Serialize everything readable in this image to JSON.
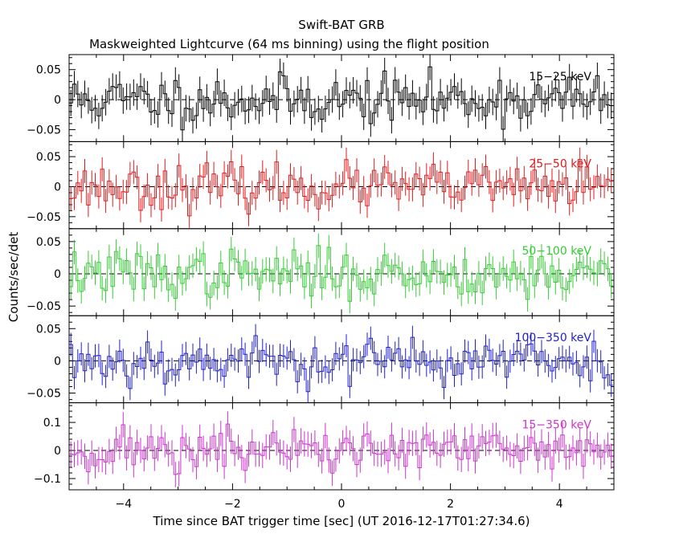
{
  "chart_data": {
    "type": "line",
    "title": "Swift-BAT GRB",
    "subtitle": "Maskweighted Lightcurve (64 ms binning) using the flight position",
    "xlabel": "Time since BAT trigger time [sec] (UT 2016-12-17T01:27:34.6)",
    "ylabel": "Counts/sec/det",
    "xlim": [
      -5,
      5
    ],
    "x_ticks": [
      -4,
      -2,
      0,
      2,
      4
    ],
    "x_tick_labels": [
      "−4",
      "−2",
      "0",
      "2",
      "4"
    ],
    "bin_width_sec": 0.064,
    "grid": false,
    "zero_line": "dashed",
    "panels": [
      {
        "name": "15-25 keV",
        "label": "15−25 keV",
        "color": "#000000",
        "ylim": [
          -0.07,
          0.075
        ],
        "y_ticks": [
          -0.05,
          0,
          0.05
        ],
        "y_tick_labels": [
          "−0.05",
          "0",
          "0.05"
        ],
        "noise_sigma": 0.02,
        "error": 0.022,
        "seed": 11
      },
      {
        "name": "25-50 keV",
        "label": "25−50 keV",
        "color": "#e31a1c",
        "ylim": [
          -0.07,
          0.075
        ],
        "y_ticks": [
          -0.05,
          0,
          0.05
        ],
        "y_tick_labels": [
          "−0.05",
          "0",
          "0.05"
        ],
        "noise_sigma": 0.018,
        "error": 0.02,
        "seed": 23
      },
      {
        "name": "50-100 keV",
        "label": "50−100 keV",
        "color": "#33cc33",
        "ylim": [
          -0.065,
          0.07
        ],
        "y_ticks": [
          -0.05,
          0,
          0.05
        ],
        "y_tick_labels": [
          "−0.05",
          "0",
          "0.05"
        ],
        "noise_sigma": 0.018,
        "error": 0.019,
        "seed": 37
      },
      {
        "name": "100-350 keV",
        "label": "100−350 keV",
        "color": "#1f1fcc",
        "ylim": [
          -0.065,
          0.07
        ],
        "y_ticks": [
          -0.05,
          0,
          0.05
        ],
        "y_tick_labels": [
          "−0.05",
          "0",
          "0.05"
        ],
        "noise_sigma": 0.018,
        "error": 0.018,
        "seed": 53
      },
      {
        "name": "15-350 keV",
        "label": "15−350 keV",
        "color": "#cc33cc",
        "ylim": [
          -0.14,
          0.17
        ],
        "y_ticks": [
          -0.1,
          0,
          0.1
        ],
        "y_tick_labels": [
          "−0.1",
          "0",
          "0.1"
        ],
        "noise_sigma": 0.04,
        "error": 0.045,
        "seed": 71
      }
    ]
  }
}
